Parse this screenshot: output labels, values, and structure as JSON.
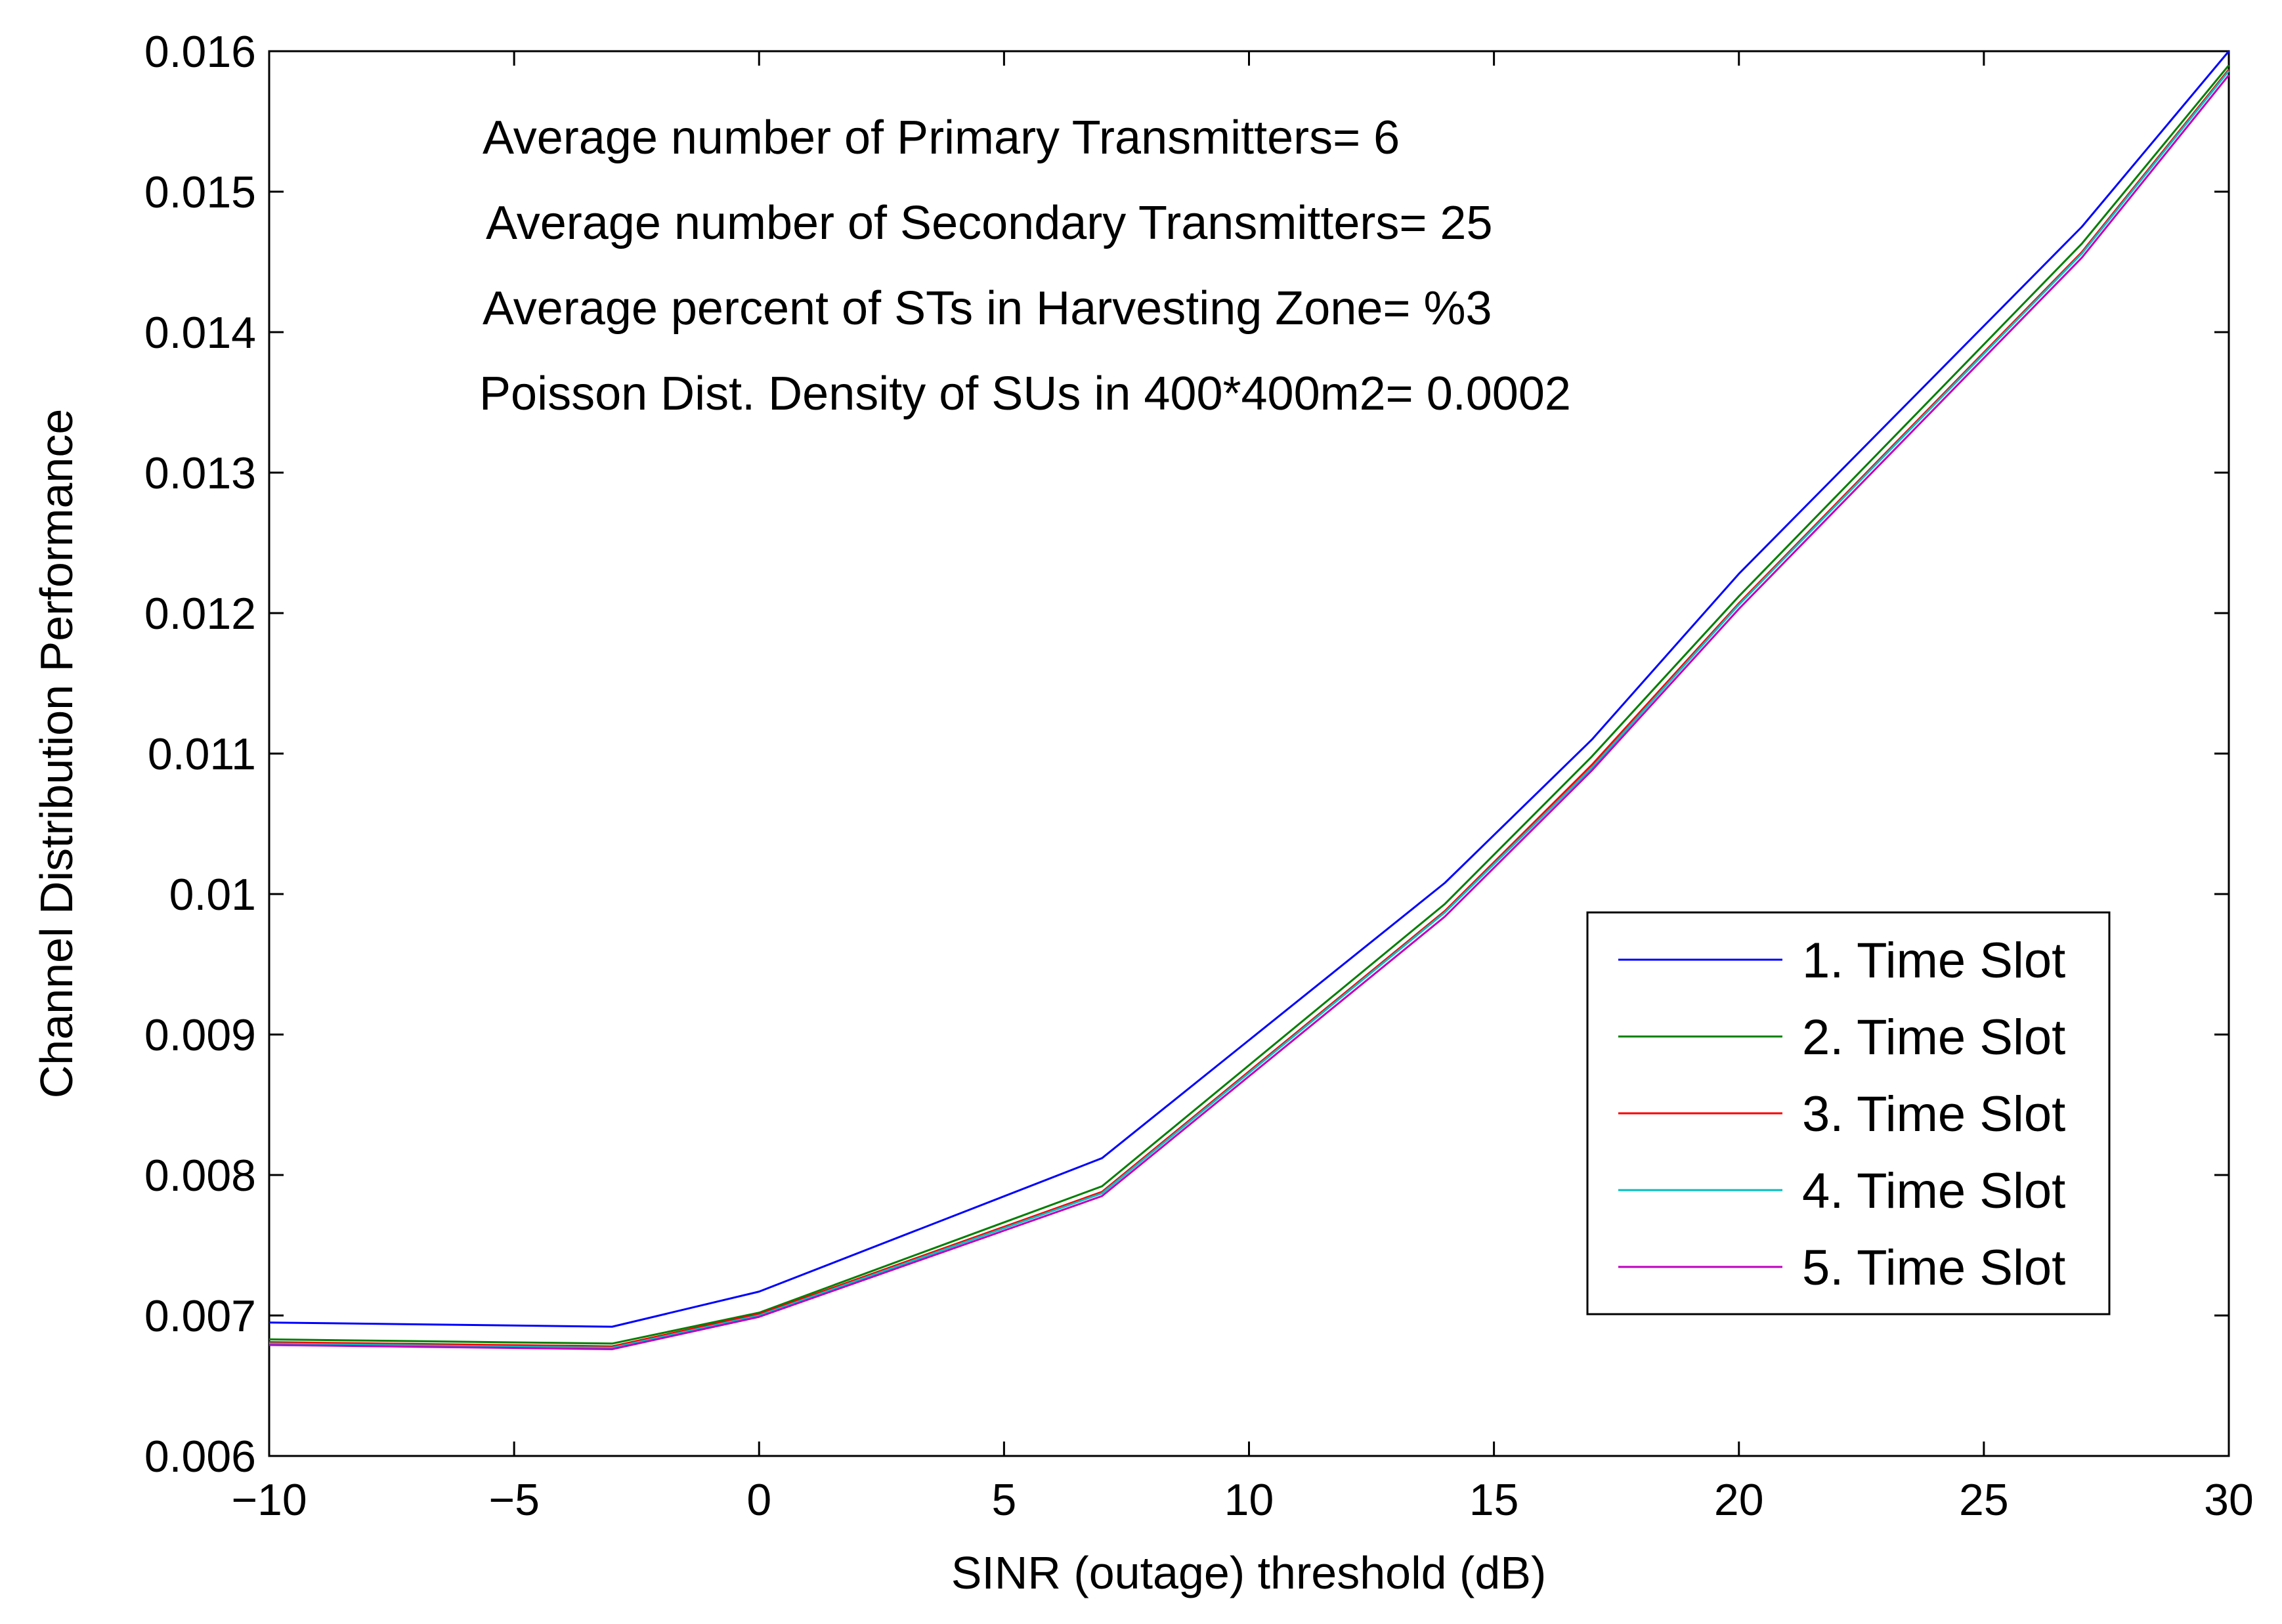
{
  "chart_data": {
    "type": "line",
    "title": "",
    "xlabel": "SINR (outage) threshold (dB)",
    "ylabel": "Channel Distribution Performance",
    "xlim": [
      -10,
      30
    ],
    "ylim": [
      0.006,
      0.016
    ],
    "xticks": [
      -10,
      -5,
      0,
      5,
      10,
      15,
      20,
      25,
      30
    ],
    "xtick_labels": [
      "−10",
      "−5",
      "0",
      "5",
      "10",
      "15",
      "20",
      "25",
      "30"
    ],
    "yticks": [
      0.006,
      0.007,
      0.008,
      0.009,
      0.01,
      0.011,
      0.012,
      0.013,
      0.014,
      0.015,
      0.016
    ],
    "ytick_labels": [
      "0.006",
      "0.007",
      "0.008",
      "0.009",
      "0.01",
      "0.011",
      "0.012",
      "0.013",
      "0.014",
      "0.015",
      "0.016"
    ],
    "grid": false,
    "legend_position": "lower-right",
    "x": [
      -10,
      -3,
      0,
      7,
      14,
      17,
      20,
      27,
      30
    ],
    "series": [
      {
        "name": "1. Time Slot",
        "color": "#0000ff",
        "values": [
          0.00695,
          0.00692,
          0.00717,
          0.00812,
          0.01008,
          0.0111,
          0.01228,
          0.01475,
          0.016
        ]
      },
      {
        "name": "2. Time Slot",
        "color": "#007f00",
        "values": [
          0.00683,
          0.0068,
          0.00702,
          0.00792,
          0.00993,
          0.01098,
          0.01212,
          0.01463,
          0.0159
        ]
      },
      {
        "name": "3. Time Slot",
        "color": "#ff0000",
        "values": [
          0.00681,
          0.00678,
          0.00701,
          0.00788,
          0.00988,
          0.01092,
          0.01207,
          0.01457,
          0.01587
        ]
      },
      {
        "name": "4. Time Slot",
        "color": "#00bfbf",
        "values": [
          0.0068,
          0.00677,
          0.007,
          0.00787,
          0.00987,
          0.0109,
          0.01206,
          0.01456,
          0.01586
        ]
      },
      {
        "name": "5. Time Slot",
        "color": "#bf00bf",
        "values": [
          0.00679,
          0.00676,
          0.00699,
          0.00785,
          0.00984,
          0.01088,
          0.01203,
          0.01453,
          0.01583
        ]
      }
    ],
    "annotations": [
      "Average number of Primary Transmitters= 6",
      "Average number of Secondary Transmitters= 25",
      "Average percent of STs in Harvesting Zone= %3",
      "Poisson Dist. Density of SUs in 400*400m2= 0.0002"
    ]
  }
}
